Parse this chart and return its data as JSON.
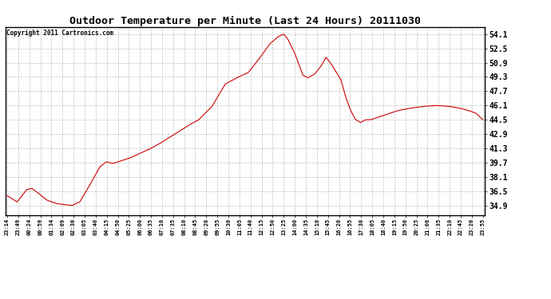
{
  "title": "Outdoor Temperature per Minute (Last 24 Hours) 20111030",
  "copyright_text": "Copyright 2011 Cartronics.com",
  "line_color": "#cc0000",
  "background_color": "#ffffff",
  "plot_bg_color": "#ffffff",
  "grid_color": "#b0b0b0",
  "y_ticks": [
    34.9,
    36.5,
    38.1,
    39.7,
    41.3,
    42.9,
    44.5,
    46.1,
    47.7,
    49.3,
    50.9,
    52.5,
    54.1
  ],
  "ylim_low": 33.8,
  "ylim_high": 54.9,
  "x_labels": [
    "23:14",
    "23:49",
    "00:24",
    "00:59",
    "01:34",
    "02:09",
    "02:30",
    "03:05",
    "03:40",
    "04:15",
    "04:50",
    "05:25",
    "06:00",
    "06:35",
    "07:10",
    "07:35",
    "08:10",
    "08:45",
    "09:20",
    "09:55",
    "10:30",
    "11:05",
    "11:40",
    "12:15",
    "12:50",
    "13:25",
    "14:00",
    "14:35",
    "15:10",
    "15:45",
    "16:20",
    "16:55",
    "17:30",
    "18:05",
    "18:40",
    "19:15",
    "19:50",
    "20:25",
    "21:00",
    "21:35",
    "22:10",
    "22:45",
    "23:20",
    "23:55"
  ],
  "ctrl_t": [
    0,
    30,
    60,
    75,
    90,
    120,
    150,
    196,
    220,
    255,
    280,
    300,
    320,
    345,
    370,
    400,
    430,
    460,
    490,
    520,
    550,
    580,
    620,
    660,
    695,
    730,
    760,
    795,
    820,
    837,
    850,
    870,
    895,
    910,
    930,
    950,
    965,
    980,
    995,
    1010,
    1025,
    1040,
    1055,
    1070,
    1085,
    1100,
    1140,
    1180,
    1220,
    1260,
    1300,
    1340,
    1370,
    1400,
    1420,
    1440
  ],
  "ctrl_v": [
    36.0,
    35.3,
    36.7,
    36.8,
    36.4,
    35.5,
    35.1,
    34.9,
    35.3,
    37.5,
    39.2,
    39.8,
    39.6,
    39.9,
    40.2,
    40.7,
    41.2,
    41.8,
    42.5,
    43.2,
    43.9,
    44.5,
    46.0,
    48.5,
    49.2,
    49.8,
    51.2,
    53.0,
    53.8,
    54.1,
    53.5,
    52.0,
    49.5,
    49.2,
    49.6,
    50.5,
    51.5,
    50.8,
    49.9,
    49.0,
    47.0,
    45.5,
    44.5,
    44.2,
    44.5,
    44.5,
    45.0,
    45.5,
    45.8,
    46.0,
    46.1,
    46.0,
    45.8,
    45.5,
    45.2,
    44.5
  ]
}
